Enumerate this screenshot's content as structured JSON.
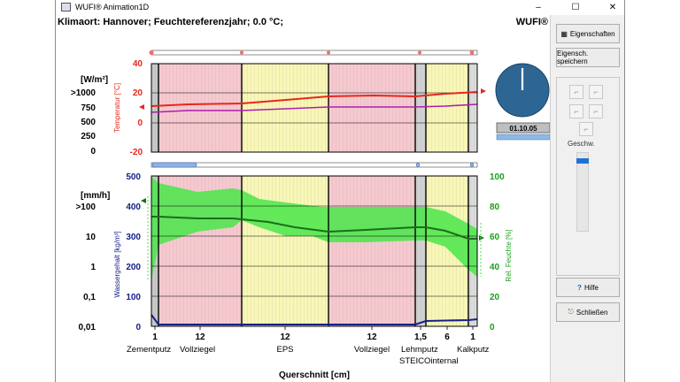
{
  "window": {
    "title": "WUFI® Animation1D",
    "minimize": "–",
    "maximize": "☐",
    "close": "✕"
  },
  "header": {
    "title": "Klimaort: Hannover; Feuchtereferenzjahr; 0.0 °C;",
    "brand": "WUFI®"
  },
  "clock": {
    "date": "01.10.05"
  },
  "upper_chart": {
    "unit_label": "[W/m²]",
    "flux_ticks": [
      ">1000",
      "750",
      "500",
      "250",
      "0"
    ],
    "temp_axis_label": "Temperatur [°C]",
    "temp_ticks": [
      "40",
      "20",
      "0",
      "-20"
    ]
  },
  "lower_chart": {
    "unit_label": "[mm/h]",
    "rain_ticks": [
      ">100",
      "10",
      "1",
      "0,1",
      "0,01"
    ],
    "water_axis_label": "Wassergehalt [kg/m³]",
    "water_ticks": [
      "500",
      "400",
      "300",
      "200",
      "100",
      "0"
    ],
    "rh_axis_label": "Rel. Feuchte [%]",
    "rh_ticks": [
      "100",
      "80",
      "60",
      "40",
      "20",
      "0"
    ]
  },
  "x_axis": {
    "thickness_ticks": [
      "1",
      "12",
      "12",
      "12",
      "1,5",
      "6",
      "1"
    ],
    "material_labels": [
      "Zementputz",
      "Vollziegel",
      "EPS",
      "Vollziegel",
      "Lehmputz",
      "STEICOinternal",
      "Kalkputz"
    ],
    "title": "Querschnitt [cm]"
  },
  "colors": {
    "brick": "#f6c9cf",
    "insulation": "#f9f7b6",
    "temperature": "#e8261c",
    "dewpoint": "#b01cb0",
    "water": "#16208a",
    "rh_band": "#49e649",
    "rh_line": "#1a6e1a",
    "clock": "#2d6593"
  },
  "sidepanel": {
    "properties_button": "Eigenschaften",
    "save_properties_button": "Eigensch. speichern",
    "speed_label": "Geschw.",
    "speed_level": 0.05,
    "help_button": "Hilfe",
    "close_button": "Schließen"
  }
}
